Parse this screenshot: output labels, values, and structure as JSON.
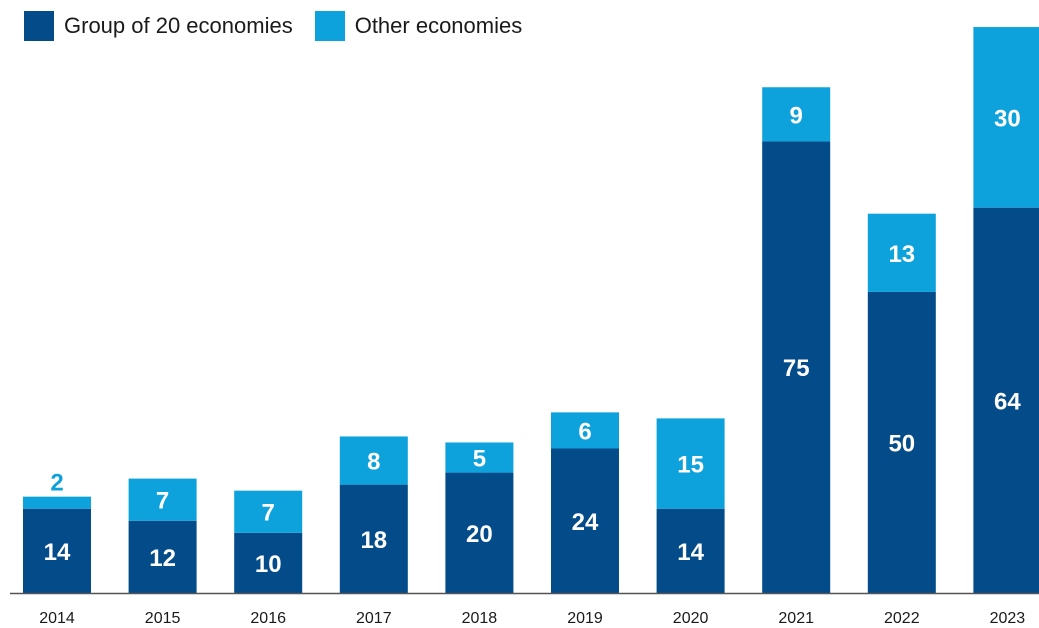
{
  "legend": {
    "g20_label": "Group of 20 economies",
    "other_label": "Other economies"
  },
  "colors": {
    "g20": "#034b89",
    "other": "#0ea2dc",
    "axis": "#555555",
    "label_on_bar": "#ffffff"
  },
  "chart_data": {
    "type": "bar",
    "stacked": true,
    "categories": [
      "2014",
      "2015",
      "2016",
      "2017",
      "2018",
      "2019",
      "2020",
      "2021",
      "2022",
      "2023"
    ],
    "series": [
      {
        "name": "Group of 20 economies",
        "values": [
          14,
          12,
          10,
          18,
          20,
          24,
          14,
          75,
          50,
          64
        ]
      },
      {
        "name": "Other economies",
        "values": [
          2,
          7,
          7,
          8,
          5,
          6,
          15,
          9,
          13,
          30
        ]
      }
    ],
    "title": "",
    "xlabel": "",
    "ylabel": "",
    "ylim": [
      0,
      96
    ],
    "grid": false,
    "legend_position": "top-left",
    "data_labels": true
  }
}
